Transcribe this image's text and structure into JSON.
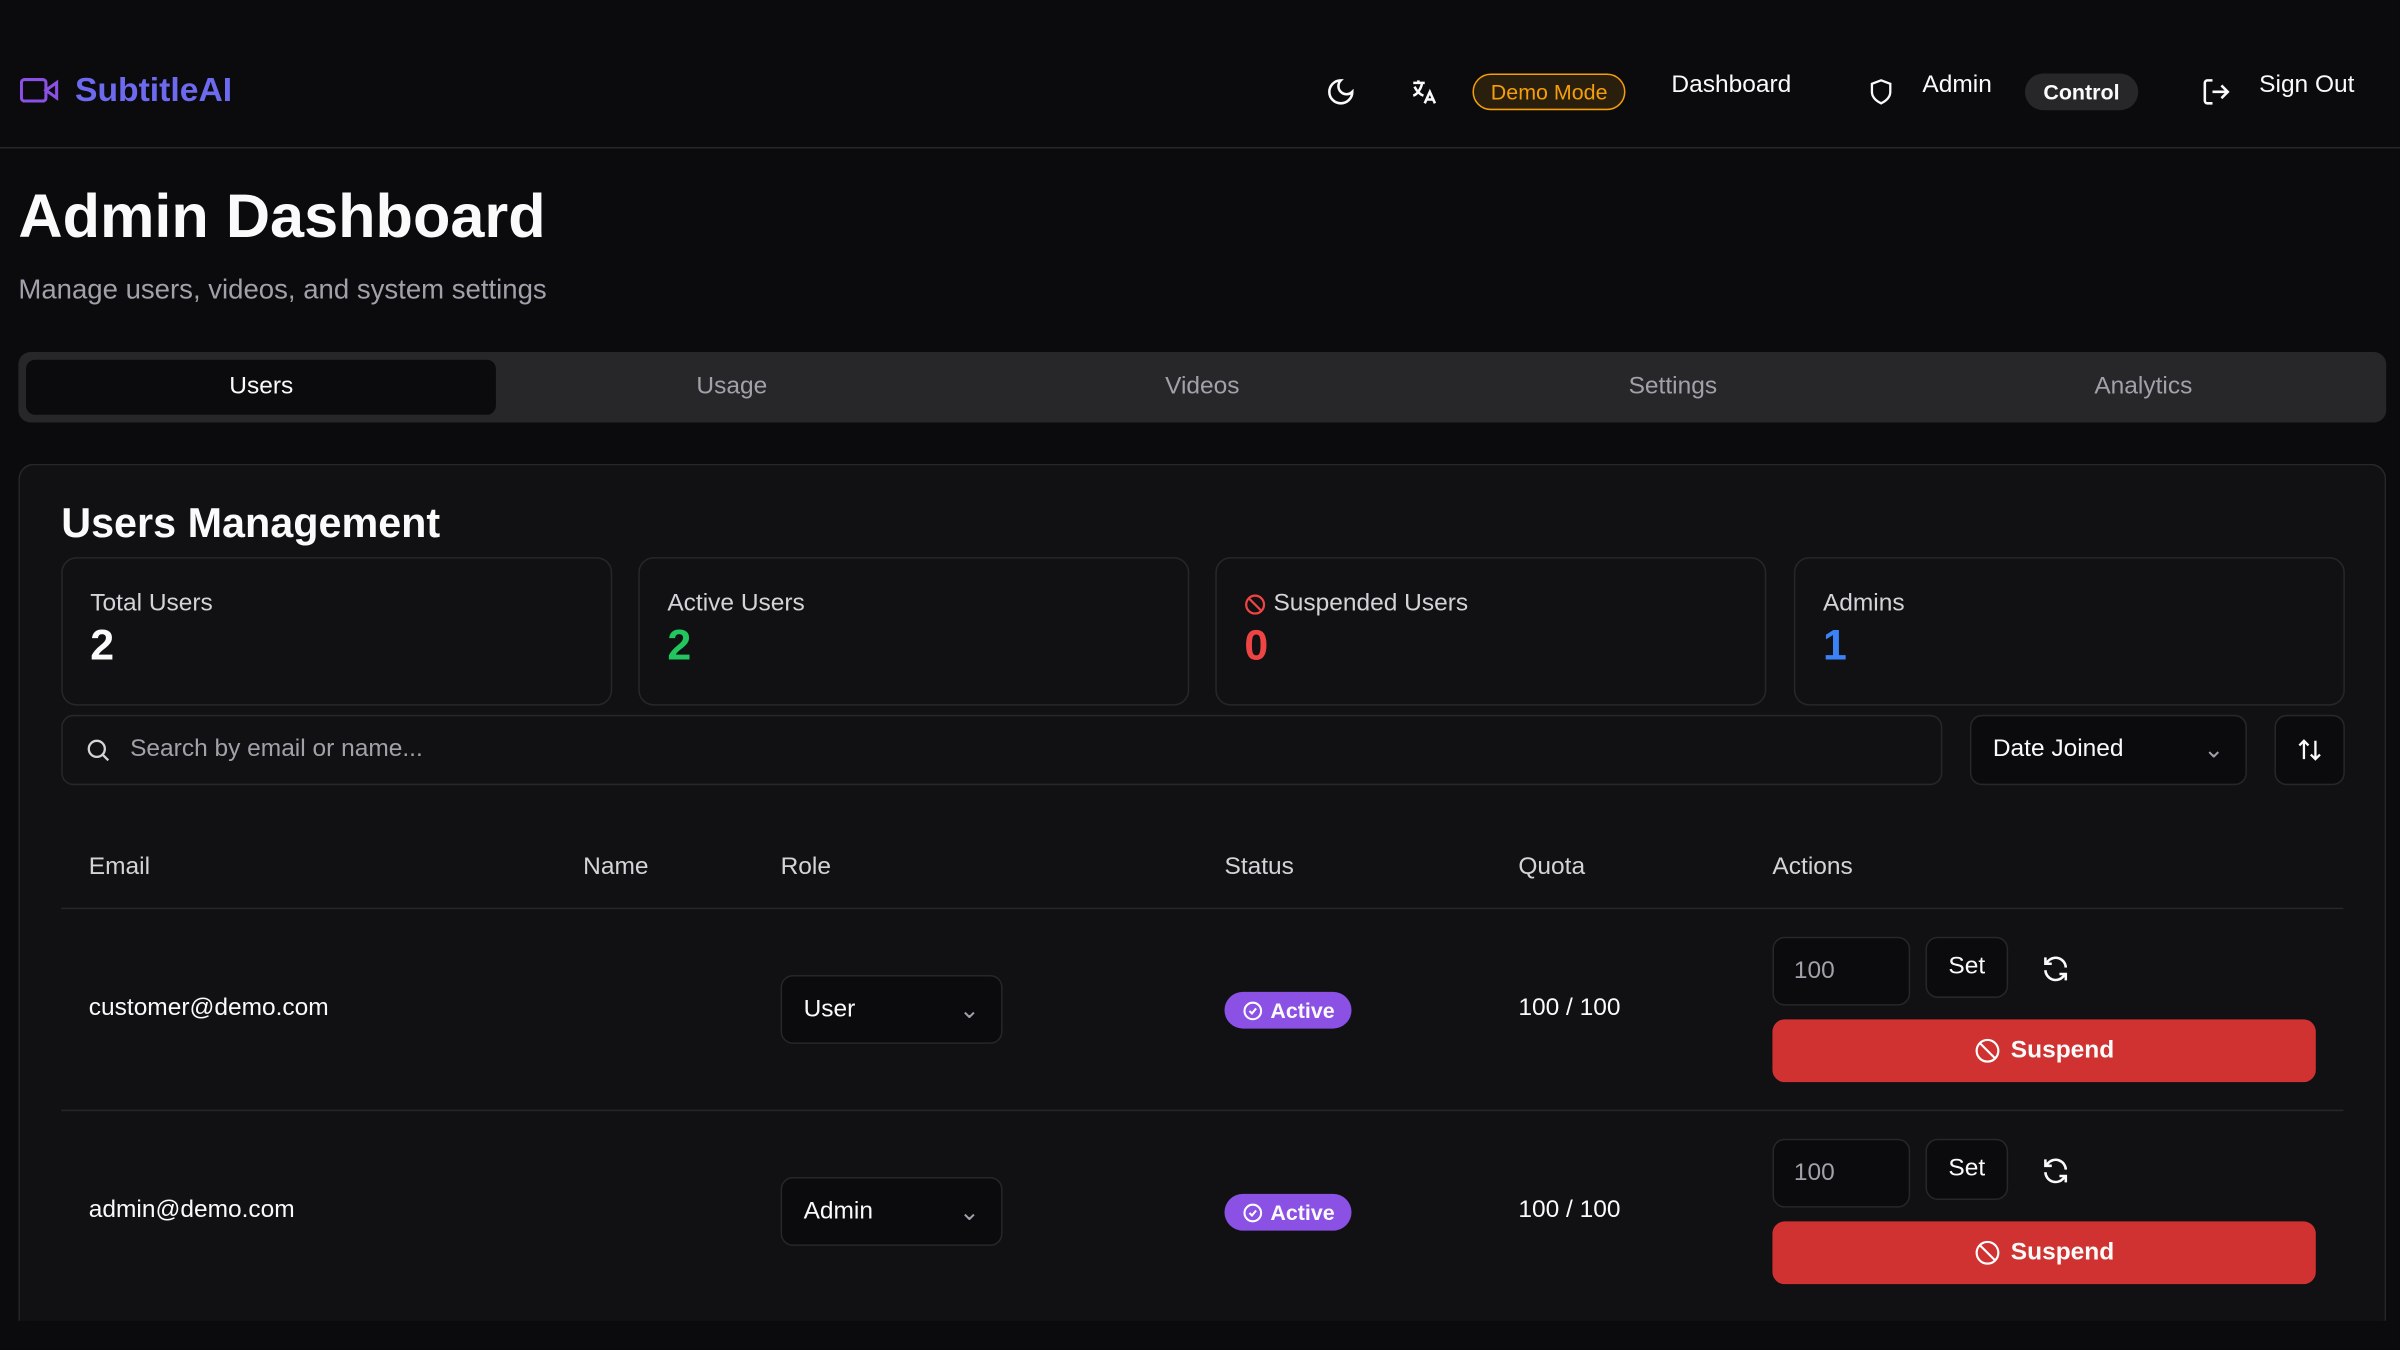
{
  "app": {
    "name": "SubtitleAI"
  },
  "header": {
    "demo_badge": "Demo Mode",
    "dashboard": "Dashboard",
    "admin": "Admin",
    "control_badge": "Control",
    "sign_out": "Sign Out"
  },
  "page": {
    "title": "Admin Dashboard",
    "subtitle": "Manage users, videos, and system settings"
  },
  "tabs": [
    {
      "label": "Users",
      "active": true
    },
    {
      "label": "Usage"
    },
    {
      "label": "Videos"
    },
    {
      "label": "Settings"
    },
    {
      "label": "Analytics"
    }
  ],
  "users": {
    "title": "Users Management",
    "stats": [
      {
        "label": "Total Users",
        "value": "2",
        "color": "#fafafa"
      },
      {
        "label": "Active Users",
        "value": "2",
        "color": "#22c55e"
      },
      {
        "label": "Suspended Users",
        "value": "0",
        "color": "#ef4444"
      },
      {
        "label": "Admins",
        "value": "1",
        "color": "#3b82f6"
      }
    ],
    "search_placeholder": "Search by email or name...",
    "sort_select": "Date Joined",
    "columns": [
      "Email",
      "Name",
      "Role",
      "Status",
      "Quota",
      "Actions"
    ],
    "rows": [
      {
        "email": "customer@demo.com",
        "name": "",
        "role": "User",
        "status": "Active",
        "quota": "100 / 100",
        "quota_input": "100",
        "set": "Set",
        "suspend": "Suspend"
      },
      {
        "email": "admin@demo.com",
        "name": "",
        "role": "Admin",
        "status": "Active",
        "quota": "100 / 100",
        "quota_input": "100",
        "set": "Set",
        "suspend": "Suspend"
      }
    ]
  }
}
